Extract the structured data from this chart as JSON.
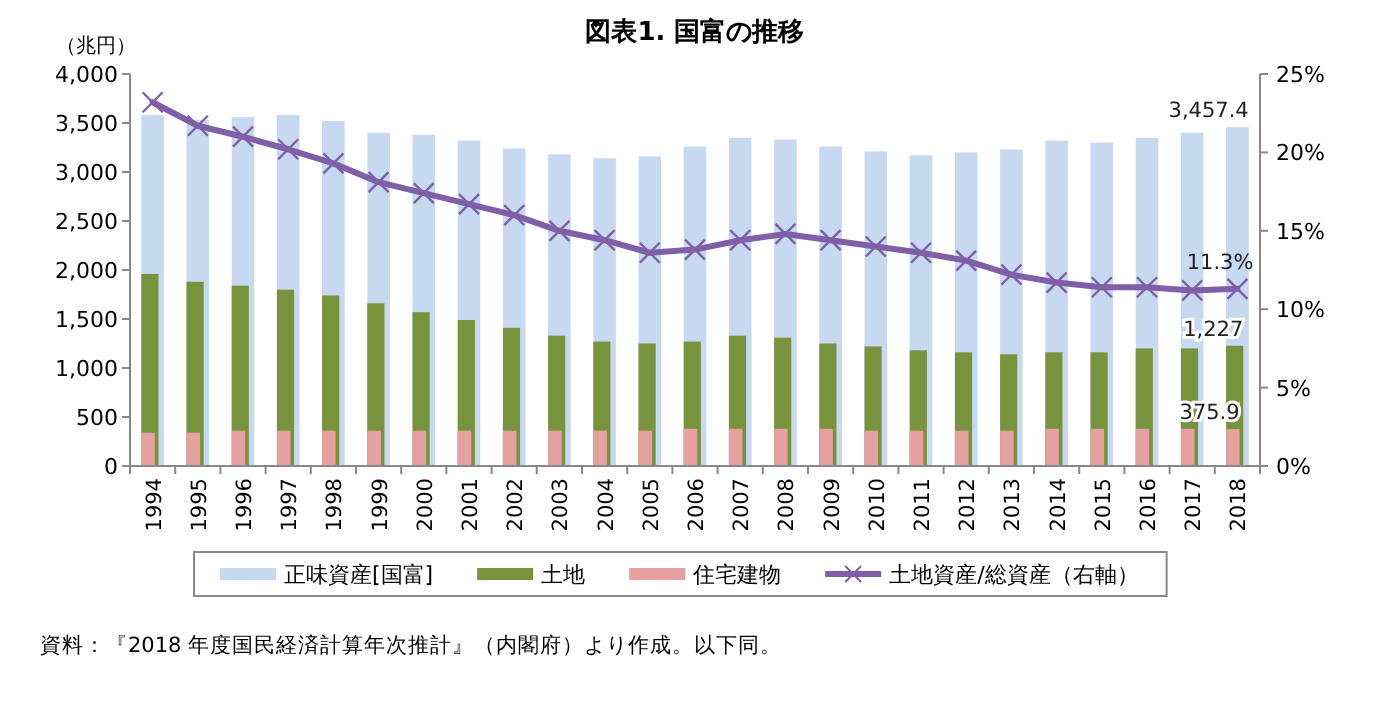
{
  "chart_data": {
    "type": "bar",
    "title": "図表1. 国富の推移",
    "ylabel": "（兆円）",
    "categories": [
      "1994",
      "1995",
      "1996",
      "1997",
      "1998",
      "1999",
      "2000",
      "2001",
      "2002",
      "2003",
      "2004",
      "2005",
      "2006",
      "2007",
      "2008",
      "2009",
      "2010",
      "2011",
      "2012",
      "2013",
      "2014",
      "2015",
      "2016",
      "2017",
      "2018"
    ],
    "series": [
      {
        "name": "正味資産[国富]",
        "color": "#c6d9f1",
        "values": [
          3580,
          3530,
          3560,
          3580,
          3520,
          3400,
          3380,
          3320,
          3240,
          3180,
          3140,
          3160,
          3260,
          3350,
          3330,
          3260,
          3210,
          3170,
          3200,
          3230,
          3320,
          3300,
          3350,
          3400,
          3457.4
        ],
        "value_labels": [
          null,
          null,
          null,
          null,
          null,
          null,
          null,
          null,
          null,
          null,
          null,
          null,
          null,
          null,
          null,
          null,
          null,
          null,
          null,
          null,
          null,
          null,
          null,
          null,
          "3,457.4"
        ]
      },
      {
        "name": "土地",
        "color": "#77933c",
        "values": [
          1960,
          1880,
          1840,
          1800,
          1740,
          1660,
          1570,
          1490,
          1410,
          1330,
          1270,
          1250,
          1270,
          1330,
          1310,
          1250,
          1220,
          1180,
          1160,
          1140,
          1160,
          1160,
          1200,
          1200,
          1227
        ],
        "value_labels": [
          null,
          null,
          null,
          null,
          null,
          null,
          null,
          null,
          null,
          null,
          null,
          null,
          null,
          null,
          null,
          null,
          null,
          null,
          null,
          null,
          null,
          null,
          null,
          null,
          "1,227"
        ]
      },
      {
        "name": "住宅建物",
        "color": "#e6a0a0",
        "values": [
          340,
          340,
          360,
          360,
          360,
          360,
          360,
          360,
          360,
          360,
          360,
          360,
          380,
          380,
          380,
          380,
          360,
          360,
          360,
          360,
          380,
          380,
          380,
          380,
          375.9
        ],
        "value_labels": [
          null,
          null,
          null,
          null,
          null,
          null,
          null,
          null,
          null,
          null,
          null,
          null,
          null,
          null,
          null,
          null,
          null,
          null,
          null,
          null,
          null,
          null,
          null,
          null,
          "375.9"
        ]
      },
      {
        "name": "土地資産/総資産（右軸）",
        "type": "line",
        "axis": "y2",
        "color": "#7f5fa8",
        "marker": "cross",
        "values": [
          23.2,
          21.7,
          21.0,
          20.2,
          19.3,
          18.1,
          17.4,
          16.7,
          16.0,
          15.0,
          14.4,
          13.6,
          13.8,
          14.4,
          14.8,
          14.4,
          14.0,
          13.6,
          13.1,
          12.2,
          11.7,
          11.4,
          11.4,
          11.2,
          11.3
        ],
        "value_labels": [
          null,
          null,
          null,
          null,
          null,
          null,
          null,
          null,
          null,
          null,
          null,
          null,
          null,
          null,
          null,
          null,
          null,
          null,
          null,
          null,
          null,
          null,
          null,
          null,
          "11.3%"
        ]
      }
    ],
    "ylim": [
      0,
      4000
    ],
    "yticks": [
      0,
      {
        "value": 500,
        "label": "500"
      },
      {
        "value": 1000,
        "label": "1,000"
      },
      {
        "value": 1500,
        "label": "1,500"
      },
      {
        "value": 2000,
        "label": "2,000"
      },
      {
        "value": 2500,
        "label": "2,500"
      },
      {
        "value": 3000,
        "label": "3,000"
      },
      {
        "value": 3500,
        "label": "3,500"
      },
      {
        "value": 4000,
        "label": "4,000"
      }
    ],
    "y2lim": [
      0,
      25
    ],
    "y2ticks": [
      {
        "value": 0,
        "label": "0%"
      },
      {
        "value": 5,
        "label": "5%"
      },
      {
        "value": 10,
        "label": "10%"
      },
      {
        "value": 15,
        "label": "15%"
      },
      {
        "value": 20,
        "label": "20%"
      },
      {
        "value": 25,
        "label": "25%"
      }
    ],
    "legend": "bottom",
    "grid": false,
    "annotations": [
      "資料：『2018 年度国民経済計算年次推計』（内閣府）より作成。以下同。"
    ]
  }
}
